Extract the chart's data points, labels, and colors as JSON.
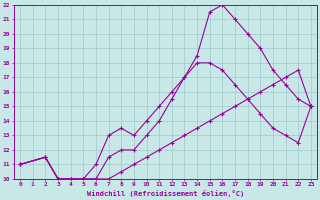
{
  "xlabel": "Windchill (Refroidissement éolien,°C)",
  "xlim": [
    -0.5,
    23.5
  ],
  "ylim": [
    10,
    22
  ],
  "xticks": [
    0,
    1,
    2,
    3,
    4,
    5,
    6,
    7,
    8,
    9,
    10,
    11,
    12,
    13,
    14,
    15,
    16,
    17,
    18,
    19,
    20,
    21,
    22,
    23
  ],
  "yticks": [
    10,
    11,
    12,
    13,
    14,
    15,
    16,
    17,
    18,
    19,
    20,
    21,
    22
  ],
  "line_color": "#990099",
  "bg_color": "#c8e8e8",
  "grid_color": "#a0c8c8",
  "line1_x": [
    0,
    2,
    3,
    4,
    5,
    6,
    7,
    8,
    9,
    10,
    11,
    12,
    13,
    14,
    15,
    16,
    17,
    18,
    19,
    20,
    21,
    22,
    23
  ],
  "line1_y": [
    11,
    11.5,
    10,
    10,
    10,
    10,
    11.5,
    12,
    12,
    13,
    14,
    15.5,
    17,
    18,
    18,
    17.5,
    16.5,
    15.5,
    14.5,
    13.5,
    13,
    12.5,
    15
  ],
  "line2_x": [
    0,
    2,
    3,
    4,
    5,
    6,
    7,
    8,
    9,
    10,
    11,
    12,
    13,
    14,
    15,
    16,
    17,
    18,
    19,
    20,
    21,
    22,
    23
  ],
  "line2_y": [
    11,
    11.5,
    10,
    10,
    10,
    11,
    13,
    13.5,
    13,
    14,
    15,
    16,
    17,
    18.5,
    21.5,
    22,
    21,
    20,
    19,
    17.5,
    16.5,
    15.5,
    15
  ],
  "line3_x": [
    0,
    2,
    3,
    4,
    5,
    6,
    7,
    8,
    9,
    10,
    11,
    12,
    13,
    14,
    15,
    16,
    17,
    18,
    19,
    20,
    21,
    22,
    23
  ],
  "line3_y": [
    11,
    11.5,
    10,
    10,
    10,
    10,
    10,
    10.5,
    11,
    11.5,
    12,
    12.5,
    13,
    13.5,
    14,
    14.5,
    15,
    15.5,
    16,
    16.5,
    17,
    17.5,
    15
  ]
}
